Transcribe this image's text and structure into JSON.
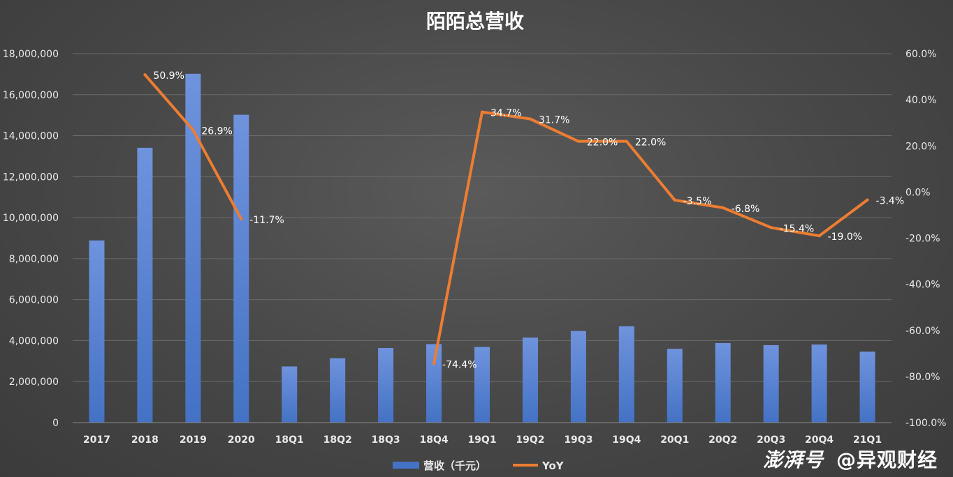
{
  "chart_data": {
    "type": "bar",
    "title": "陌陌总营收",
    "categories": [
      "2017",
      "2018",
      "2019",
      "2020",
      "18Q1",
      "18Q2",
      "18Q3",
      "18Q4",
      "19Q1",
      "19Q2",
      "19Q3",
      "19Q4",
      "20Q1",
      "20Q2",
      "20Q3",
      "20Q4",
      "21Q1"
    ],
    "series": [
      {
        "name": "营收（千元）",
        "type": "bar",
        "axis": "left",
        "color": "#4472c4",
        "values": [
          8888000,
          13410000,
          17020000,
          15020000,
          2740000,
          3140000,
          3640000,
          3830000,
          3690000,
          4150000,
          4470000,
          4700000,
          3600000,
          3880000,
          3780000,
          3810000,
          3460000
        ]
      },
      {
        "name": "YoY",
        "type": "line",
        "axis": "right",
        "color": "#ed7d31",
        "groups": [
          {
            "categories": [
              "2018",
              "2019",
              "2020"
            ],
            "values": [
              50.9,
              26.9,
              -11.7
            ],
            "labels": [
              "50.9%",
              "26.9%",
              "-11.7%"
            ]
          },
          {
            "categories": [
              "18Q4",
              "19Q1",
              "19Q2",
              "19Q3",
              "19Q4",
              "20Q1",
              "20Q2",
              "20Q3",
              "20Q4",
              "21Q1"
            ],
            "values": [
              -74.4,
              34.7,
              31.7,
              22.0,
              22.0,
              -3.5,
              -6.8,
              -15.4,
              -19.0,
              -3.4
            ],
            "labels": [
              "-74.4%",
              "34.7%",
              "31.7%",
              "22.0%",
              "22.0%",
              "-3.5%",
              "-6.8%",
              "-15.4%",
              "-19.0%",
              "-3.4%"
            ]
          }
        ]
      }
    ],
    "y_left": {
      "min": 0,
      "max": 18000000,
      "ticks": [
        0,
        2000000,
        4000000,
        6000000,
        8000000,
        10000000,
        12000000,
        14000000,
        16000000,
        18000000
      ],
      "tick_labels": [
        "0",
        "2,000,000",
        "4,000,000",
        "6,000,000",
        "8,000,000",
        "10,000,000",
        "12,000,000",
        "14,000,000",
        "16,000,000",
        "18,000,000"
      ]
    },
    "y_right": {
      "min": -100,
      "max": 60,
      "ticks": [
        -100,
        -80,
        -60,
        -40,
        -20,
        0,
        20,
        40,
        60
      ],
      "tick_labels": [
        "-100.0%",
        "-80.0%",
        "-60.0%",
        "-40.0%",
        "-20.0%",
        "0.0%",
        "20.0%",
        "40.0%",
        "60.0%"
      ]
    },
    "grid": true,
    "legend": "bottom"
  },
  "watermark": {
    "brand": "澎湃号",
    "account": "@异观财经"
  },
  "colors": {
    "background": "#474747",
    "text": "#ffffff",
    "axis_text": "#e8e8e8",
    "gridline": "#6a6a6a"
  }
}
